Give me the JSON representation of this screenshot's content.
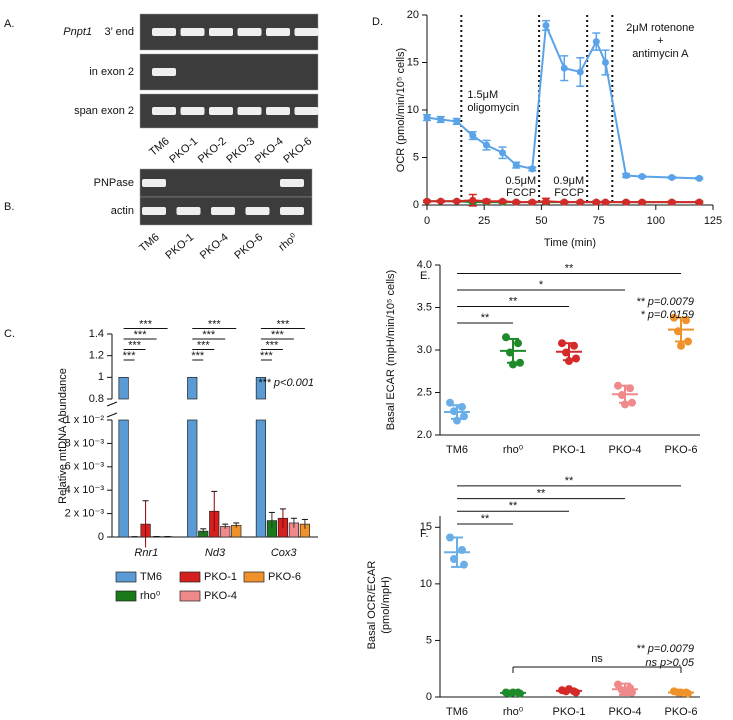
{
  "panel_labels": [
    "A.",
    "B.",
    "C.",
    "D.",
    "E.",
    "F."
  ],
  "gel_a": {
    "rows": [
      {
        "gene": "Pnpt1",
        "label": "3’ end",
        "bands": [
          true,
          true,
          true,
          true,
          true,
          true
        ]
      },
      {
        "label": "in exon 2",
        "bands": [
          true,
          false,
          false,
          false,
          false,
          false
        ]
      },
      {
        "label": "span exon 2",
        "bands": [
          true,
          true,
          true,
          true,
          true,
          true
        ]
      }
    ],
    "lanes": [
      "TM6",
      "PKO-1",
      "PKO-2",
      "PKO-3",
      "PKO-4",
      "PKO-6"
    ]
  },
  "western_b": {
    "rows": [
      {
        "label": "PNPase",
        "bands": [
          true,
          false,
          false,
          false,
          true
        ]
      },
      {
        "label": "actin",
        "bands": [
          true,
          true,
          true,
          true,
          true
        ]
      }
    ],
    "lanes": [
      "TM6",
      "PKO-1",
      "PKO-4",
      "PKO-6",
      "rho⁰"
    ]
  },
  "chart_data": [
    {
      "type": "bar",
      "y_label": "Relative mtDNA Abundance",
      "categories": [
        "Rnr1",
        "Nd3",
        "Cox3"
      ],
      "series": [
        {
          "name": "TM6",
          "color": "#5b9bd5",
          "values": [
            1,
            1,
            1
          ]
        },
        {
          "name": "rho⁰",
          "color": "#1a7a1a",
          "values": [
            2e-05,
            0.0005,
            0.0014
          ],
          "errors": [
            1e-05,
            0.0002,
            0.0007
          ]
        },
        {
          "name": "PKO-1",
          "color": "#d62020",
          "values": [
            0.0011,
            0.0022,
            0.0016
          ],
          "errors": [
            0.002,
            0.0017,
            0.0008
          ]
        },
        {
          "name": "PKO-4",
          "color": "#f08a8a",
          "values": [
            3e-05,
            0.0009,
            0.0012
          ],
          "errors": [
            1e-05,
            0.0002,
            0.0004
          ]
        },
        {
          "name": "PKO-6",
          "color": "#f0922b",
          "values": [
            3e-05,
            0.001,
            0.0011
          ],
          "errors": [
            1e-05,
            0.0002,
            0.0004
          ]
        }
      ],
      "ylim": [
        0,
        0.01
      ],
      "yticks": [
        0,
        {
          "value": 0.002,
          "label": "2 x 10⁻³"
        },
        {
          "value": 0.004,
          "label": "4 x 10⁻³"
        },
        {
          "value": 0.006,
          "label": "6 x 10⁻³"
        },
        {
          "value": 0.008,
          "label": "8 x 10⁻³"
        },
        {
          "value": 0.01,
          "label": "1 x 10⁻²"
        }
      ],
      "ylim_upper": [
        0.8,
        1.4
      ],
      "yticks_upper": [
        0.8,
        1,
        1.2,
        1.4
      ],
      "significance": [
        [
          "***",
          "***",
          "***",
          "***"
        ],
        [
          "***",
          "***",
          "***",
          "***"
        ],
        [
          "***",
          "***",
          "***",
          "***"
        ]
      ],
      "annotation": "*** p<0.001"
    },
    {
      "type": "line",
      "x_label": "Time (min)",
      "y_label": "OCR (pmol/min/10⁵ cells)",
      "x": [
        0,
        6,
        13,
        20,
        26,
        33,
        39,
        46,
        52,
        60,
        67,
        74,
        78,
        87,
        94,
        107,
        119
      ],
      "xlim": [
        0,
        125
      ],
      "xticks": [
        0,
        25,
        50,
        75,
        100,
        125
      ],
      "ylim": [
        0,
        20
      ],
      "yticks": [
        0,
        5,
        10,
        15,
        20
      ],
      "series": [
        {
          "color": "#5ba3e8",
          "values": [
            9.2,
            9.0,
            8.8,
            7.3,
            6.3,
            5.5,
            4.2,
            3.8,
            18.9,
            14.4,
            14.0,
            17.2,
            15.0,
            3.1,
            3.0,
            2.9,
            2.8
          ],
          "errors": [
            0.3,
            0.3,
            0.3,
            0.4,
            0.5,
            0.6,
            0.3,
            0.2,
            0.5,
            1.3,
            1.5,
            0.9,
            1.3,
            0.2,
            0.1,
            0.1,
            0.1
          ]
        },
        {
          "color": "#1f8a2a",
          "values": [
            0.4,
            0.4,
            0.4,
            0.3,
            0.3,
            0.3,
            0.3,
            0.3,
            0.3,
            0.3,
            0.3,
            0.3,
            0.3,
            0.3,
            0.3,
            0.3,
            0.3
          ],
          "errors": [
            0.1,
            0.1,
            0.1,
            0.1,
            0.1,
            0.1,
            0.1,
            0.1,
            0.1,
            0.1,
            0.1,
            0.1,
            0.1,
            0.1,
            0.1,
            0.1,
            0.1
          ]
        },
        {
          "color": "#d42a2a",
          "values": [
            0.4,
            0.4,
            0.4,
            0.5,
            0.4,
            0.4,
            0.3,
            0.3,
            0.4,
            0.3,
            0.3,
            0.3,
            0.3,
            0.3,
            0.3,
            0.3,
            0.3
          ],
          "errors": [
            0.1,
            0.1,
            0.1,
            0.6,
            0.2,
            0.1,
            0.1,
            0.1,
            0.3,
            0.1,
            0.1,
            0.1,
            0.1,
            0.1,
            0.1,
            0.1,
            0.1
          ]
        }
      ],
      "injections": [
        {
          "x": 15,
          "label": [
            "1.5μM",
            "oligomycin"
          ]
        },
        {
          "x": 49,
          "label": [
            "0.5μM",
            "FCCP"
          ]
        },
        {
          "x": 70,
          "label": [
            "0.9μM",
            "FCCP"
          ]
        },
        {
          "x": 81,
          "label": [
            "2μM rotenone",
            "+",
            "antimycin A"
          ]
        }
      ]
    },
    {
      "type": "strip",
      "y_label": "Basal ECAR (mpH/min/10⁵ cells)",
      "categories": [
        "TM6",
        "rho⁰",
        "PKO-1",
        "PKO-4",
        "PKO-6"
      ],
      "series": [
        {
          "color": "#6aaee8",
          "values": [
            2.38,
            2.33,
            2.28,
            2.22,
            2.17
          ],
          "mean": 2.27,
          "error": 0.08
        },
        {
          "color": "#1f8a2a",
          "values": [
            3.15,
            3.08,
            2.97,
            2.85,
            2.83
          ],
          "mean": 2.99,
          "error": 0.14
        },
        {
          "color": "#d42a2a",
          "values": [
            3.08,
            3.05,
            2.97,
            2.9,
            2.87
          ],
          "mean": 2.98,
          "error": 0.1
        },
        {
          "color": "#f08a8a",
          "values": [
            2.58,
            2.55,
            2.47,
            2.38,
            2.36
          ],
          "mean": 2.48,
          "error": 0.1
        },
        {
          "color": "#f0922b",
          "values": [
            3.38,
            3.35,
            3.22,
            3.1,
            3.05
          ],
          "mean": 3.24,
          "error": 0.14
        }
      ],
      "ylim": [
        2,
        4
      ],
      "yticks": [
        {
          "value": 2,
          "label": "2.0"
        },
        {
          "value": 2.5,
          "label": "2.5"
        },
        {
          "value": 3,
          "label": "3.0"
        },
        {
          "value": 3.5,
          "label": "3.5"
        },
        {
          "value": 4,
          "label": "4.0"
        }
      ],
      "significance": [
        null,
        "**",
        "**",
        "*",
        "**"
      ],
      "annotations": [
        "** p=0.0079",
        "* p=0.0159"
      ]
    },
    {
      "type": "strip",
      "y_label": [
        "Basal OCR/ECAR",
        "(pmol/mpH)"
      ],
      "categories": [
        "TM6",
        "rho⁰",
        "PKO-1",
        "PKO-4",
        "PKO-6"
      ],
      "series": [
        {
          "color": "#6aaee8",
          "values": [
            14.1,
            13.0,
            12.2,
            11.7
          ],
          "mean": 12.8,
          "error": 1.3
        },
        {
          "color": "#1f8a2a",
          "values": [
            0.4,
            0.4,
            0.3,
            0.3,
            0.4
          ],
          "mean": 0.36,
          "error": 0.05
        },
        {
          "color": "#d42a2a",
          "values": [
            0.6,
            0.5,
            0.5,
            0.4,
            0.7
          ],
          "mean": 0.54,
          "error": 0.1
        },
        {
          "color": "#f08a8a",
          "values": [
            1.1,
            0.8,
            0.6,
            0.4,
            0.5
          ],
          "mean": 0.68,
          "error": 0.5
        },
        {
          "color": "#f0922b",
          "values": [
            0.5,
            0.4,
            0.4,
            0.3,
            0.4
          ],
          "mean": 0.4,
          "error": 0.06
        }
      ],
      "ylim": [
        0,
        16
      ],
      "yticks": [
        0,
        5,
        10,
        15
      ],
      "significance": [
        null,
        "**",
        "**",
        "**",
        "**"
      ],
      "group_comparison": "ns",
      "annotations": [
        "** p=0.0079",
        "ns  p>0.05"
      ]
    }
  ]
}
